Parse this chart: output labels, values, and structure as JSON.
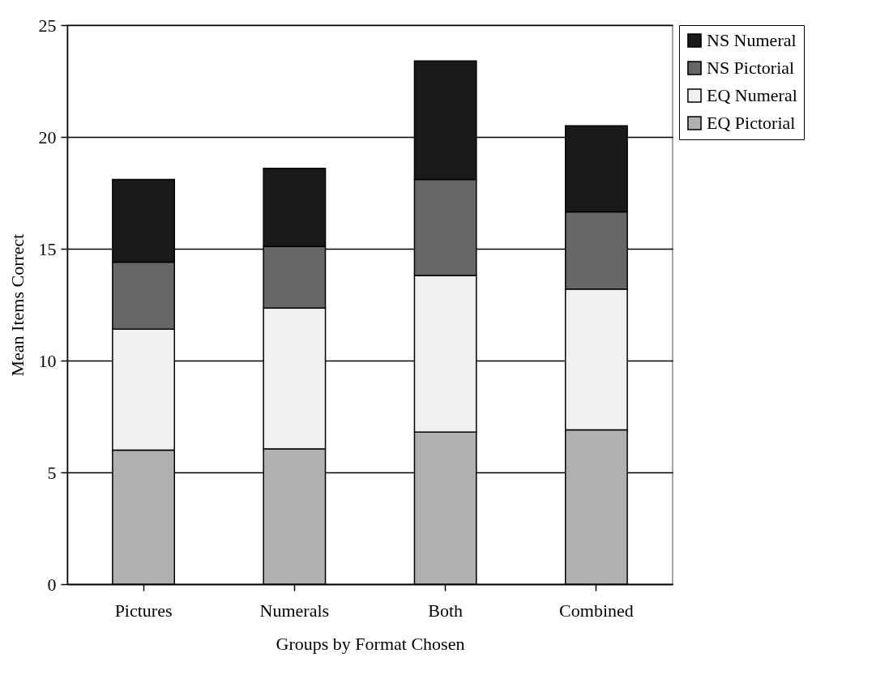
{
  "chart_data": {
    "type": "bar",
    "stacked": true,
    "xlabel": "Groups by Format Chosen",
    "ylabel": "Mean Items Correct",
    "categories": [
      "Pictures",
      "Numerals",
      "Both",
      "Combined"
    ],
    "series": [
      {
        "name": "EQ Pictorial",
        "color": "#b0b0b0",
        "values": [
          6.0,
          6.05,
          6.8,
          6.9
        ]
      },
      {
        "name": "EQ Numeral",
        "color": "#f0f0f0",
        "values": [
          5.4,
          6.3,
          7.0,
          6.3
        ]
      },
      {
        "name": "NS Pictorial",
        "color": "#666666",
        "values": [
          3.0,
          2.75,
          4.3,
          3.45
        ]
      },
      {
        "name": "NS Numeral",
        "color": "#1a1a1a",
        "values": [
          3.7,
          3.5,
          5.3,
          3.85
        ]
      }
    ],
    "ylim": [
      0,
      25
    ],
    "yticks": [
      0,
      5,
      10,
      15,
      20,
      25
    ],
    "grid": "y",
    "legend": "right"
  }
}
